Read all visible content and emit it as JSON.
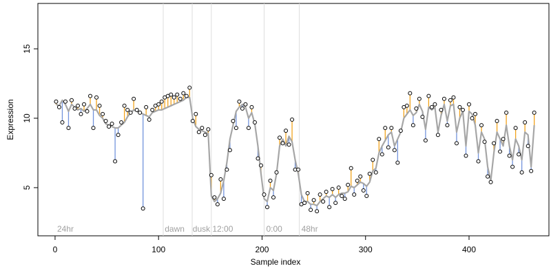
{
  "chart_data": {
    "type": "scatter",
    "xlabel": "Sample index",
    "ylabel": "Expression",
    "xlim": [
      -16.6,
      477.2
    ],
    "ylim": [
      1.53,
      18.27
    ],
    "xticks": [
      0,
      100,
      200,
      300,
      400
    ],
    "yticks": [
      5,
      10,
      15
    ],
    "vlines": [
      104.5,
      132.5,
      151,
      202,
      236
    ],
    "vline_color": "#dddddd",
    "annotations": [
      {
        "x": 2,
        "label": "24hr"
      },
      {
        "x": 106,
        "label": "dawn"
      },
      {
        "x": 133,
        "label": "dusk"
      },
      {
        "x": 152,
        "label": "12:00"
      },
      {
        "x": 204,
        "label": "0:00"
      },
      {
        "x": 238,
        "label": "48hr"
      }
    ],
    "residual_colors": {
      "above": "#f2a31b",
      "below": "#7293dc"
    },
    "x": [
      1,
      4,
      7,
      10,
      13,
      16,
      19,
      22,
      25,
      28,
      31,
      34,
      37,
      40,
      43,
      46,
      49,
      52,
      55,
      58,
      61,
      64,
      67,
      70,
      73,
      76,
      79,
      82,
      85,
      88,
      91,
      94,
      97,
      100,
      103,
      106,
      109,
      112,
      115,
      118,
      121,
      124,
      127,
      130,
      133,
      136,
      139,
      142,
      145,
      148,
      151,
      154,
      157,
      160,
      163,
      166,
      169,
      172,
      175,
      178,
      181,
      184,
      187,
      190,
      193,
      196,
      199,
      202,
      205,
      208,
      211,
      214,
      217,
      220,
      223,
      226,
      229,
      232,
      235,
      238,
      241,
      244,
      247,
      250,
      253,
      256,
      259,
      262,
      265,
      268,
      271,
      274,
      277,
      280,
      283,
      286,
      289,
      292,
      295,
      298,
      301,
      304,
      307,
      310,
      313,
      316,
      319,
      322,
      325,
      328,
      331,
      334,
      337,
      340,
      343,
      346,
      349,
      352,
      355,
      358,
      361,
      364,
      367,
      370,
      373,
      376,
      379,
      382,
      385,
      388,
      391,
      394,
      397,
      400,
      403,
      406,
      409,
      412,
      415,
      418,
      421,
      424,
      427,
      430,
      433,
      436,
      439,
      442,
      445,
      448,
      451,
      454,
      457,
      460,
      463
    ],
    "series": [
      {
        "type": "scatter",
        "color": "#000000",
        "values": [
          11.2,
          10.8,
          9.7,
          11.2,
          9.3,
          11.3,
          10.7,
          10.9,
          10.3,
          11.0,
          10.5,
          11.6,
          9.3,
          11.5,
          10.9,
          10.3,
          9.8,
          9.4,
          9.6,
          6.9,
          8.8,
          9.7,
          10.9,
          10.6,
          10.4,
          11.4,
          10.6,
          10.4,
          3.5,
          10.8,
          9.9,
          10.6,
          10.9,
          11.0,
          11.2,
          11.5,
          11.6,
          11.7,
          11.5,
          11.7,
          11.4,
          11.8,
          11.6,
          12.2,
          9.8,
          10.3,
          9.0,
          9.3,
          8.8,
          9.2,
          5.9,
          4.3,
          3.8,
          5.6,
          4.2,
          6.3,
          7.7,
          9.8,
          9.3,
          11.2,
          10.7,
          11.0,
          9.3,
          10.8,
          9.7,
          7.1,
          6.6,
          4.5,
          3.6,
          5.5,
          4.3,
          6.1,
          8.6,
          8.2,
          9.1,
          8.1,
          9.9,
          6.3,
          6.3,
          3.8,
          3.9,
          4.6,
          3.4,
          4.1,
          3.3,
          4.5,
          4.0,
          4.7,
          3.6,
          4.9,
          3.9,
          5.0,
          4.4,
          4.2,
          5.2,
          6.4,
          4.5,
          5.5,
          5.8,
          4.8,
          4.4,
          6.0,
          7.0,
          6.1,
          8.5,
          7.4,
          9.3,
          7.9,
          9.3,
          7.7,
          6.8,
          9.1,
          10.8,
          10.9,
          11.8,
          9.5,
          10.7,
          11.4,
          10.1,
          8.4,
          11.6,
          10.8,
          11.0,
          8.8,
          10.6,
          11.4,
          9.5,
          11.3,
          11.5,
          8.2,
          10.8,
          10.6,
          7.3,
          11.0,
          10.0,
          10.3,
          6.9,
          9.5,
          8.3,
          5.8,
          5.4,
          8.2,
          9.8,
          7.6,
          8.5,
          10.4,
          7.3,
          6.5,
          9.3,
          7.4,
          6.1,
          9.7,
          8.0,
          6.2,
          10.4
        ]
      },
      {
        "type": "line",
        "color": "#a6a6a6",
        "values": [
          11.0,
          10.9,
          11.3,
          11.0,
          10.5,
          11.0,
          10.8,
          10.6,
          10.7,
          10.5,
          10.7,
          11.0,
          10.6,
          10.6,
          10.2,
          10.0,
          9.6,
          9.5,
          9.4,
          9.3,
          9.3,
          9.5,
          9.7,
          10.1,
          10.4,
          10.6,
          10.5,
          10.4,
          10.3,
          10.2,
          10.1,
          10.4,
          10.5,
          10.6,
          10.6,
          10.7,
          10.8,
          10.9,
          11.0,
          11.1,
          11.2,
          11.3,
          11.5,
          11.5,
          10.0,
          9.4,
          9.2,
          9.1,
          9.0,
          8.9,
          4.4,
          4.0,
          4.2,
          4.6,
          5.5,
          6.8,
          8.5,
          9.5,
          10.5,
          10.8,
          11.0,
          10.8,
          10.0,
          10.4,
          9.6,
          8.0,
          6.0,
          4.2,
          4.0,
          5.0,
          4.8,
          6.0,
          8.0,
          8.5,
          8.0,
          8.7,
          8.3,
          7.0,
          6.0,
          4.5,
          4.0,
          4.0,
          3.8,
          3.8,
          3.7,
          4.0,
          4.2,
          4.4,
          4.3,
          4.5,
          4.3,
          4.5,
          4.6,
          4.6,
          4.7,
          5.1,
          5.0,
          5.2,
          5.4,
          5.3,
          5.1,
          5.4,
          6.2,
          6.4,
          7.5,
          8.0,
          8.4,
          8.8,
          9.0,
          8.0,
          8.5,
          9.0,
          10.0,
          10.3,
          10.6,
          10.2,
          10.4,
          11.0,
          10.5,
          9.2,
          10.8,
          10.6,
          10.8,
          9.0,
          10.2,
          11.0,
          9.8,
          10.9,
          11.0,
          9.0,
          10.0,
          10.5,
          8.0,
          10.5,
          10.3,
          9.5,
          7.5,
          9.0,
          8.5,
          6.5,
          5.5,
          7.5,
          9.0,
          8.5,
          8.0,
          9.5,
          8.0,
          7.0,
          8.5,
          8.0,
          7.0,
          9.0,
          8.8,
          6.5,
          9.5
        ]
      }
    ]
  }
}
